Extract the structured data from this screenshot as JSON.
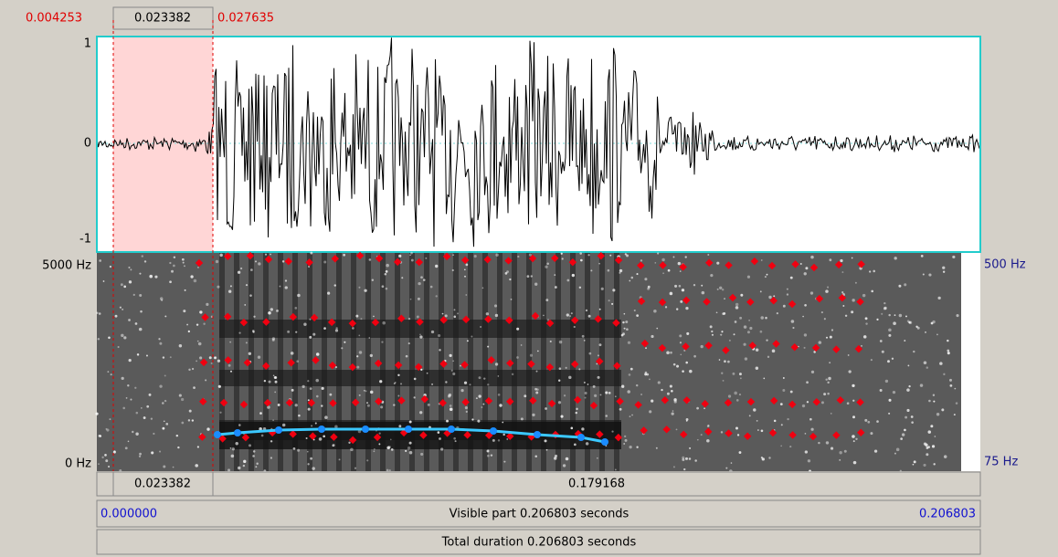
{
  "header": {
    "start": "0.004253",
    "selection": "0.023382",
    "end": "0.027635"
  },
  "waveform": {
    "top": "1",
    "zero": "0",
    "bottom": "-1"
  },
  "spectrogram": {
    "top_left": "5000 Hz",
    "bottom_left": "0 Hz",
    "top_right": "500 Hz",
    "bottom_right": "75 Hz"
  },
  "footer": {
    "selection": "0.023382",
    "rest": "0.179168",
    "visible_start": "0.000000",
    "visible_label": "Visible part 0.206803 seconds",
    "visible_end": "0.206803",
    "total": "Total duration 0.206803 seconds"
  }
}
